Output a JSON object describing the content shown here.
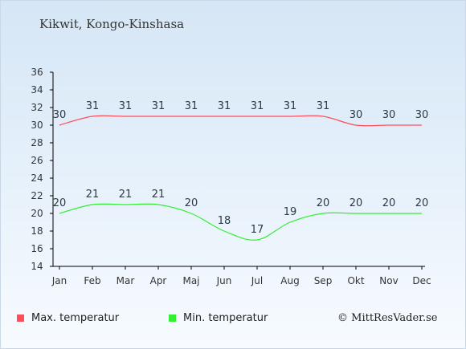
{
  "title": "Kikwit, Kongo-Kinshasa",
  "copyright": "© MittResVader.se",
  "colors": {
    "max": "#ff4d5a",
    "min": "#33ee33",
    "axis": "#000000",
    "label": "#333333",
    "datalabel": "#2a3a4a"
  },
  "chart_data": {
    "type": "line",
    "categories": [
      "Jan",
      "Feb",
      "Mar",
      "Apr",
      "Maj",
      "Jun",
      "Jul",
      "Aug",
      "Sep",
      "Okt",
      "Nov",
      "Dec"
    ],
    "series": [
      {
        "name": "Max. temperatur",
        "values": [
          30,
          31,
          31,
          31,
          31,
          31,
          31,
          31,
          31,
          30,
          30,
          30
        ]
      },
      {
        "name": "Min. temperatur",
        "values": [
          20,
          21,
          21,
          21,
          20,
          18,
          17,
          19,
          20,
          20,
          20,
          20
        ]
      }
    ],
    "ylim": [
      14,
      36
    ],
    "yticks": [
      14,
      16,
      18,
      20,
      22,
      24,
      26,
      28,
      30,
      32,
      34,
      36
    ],
    "grid": false,
    "legend": "bottom-left"
  }
}
